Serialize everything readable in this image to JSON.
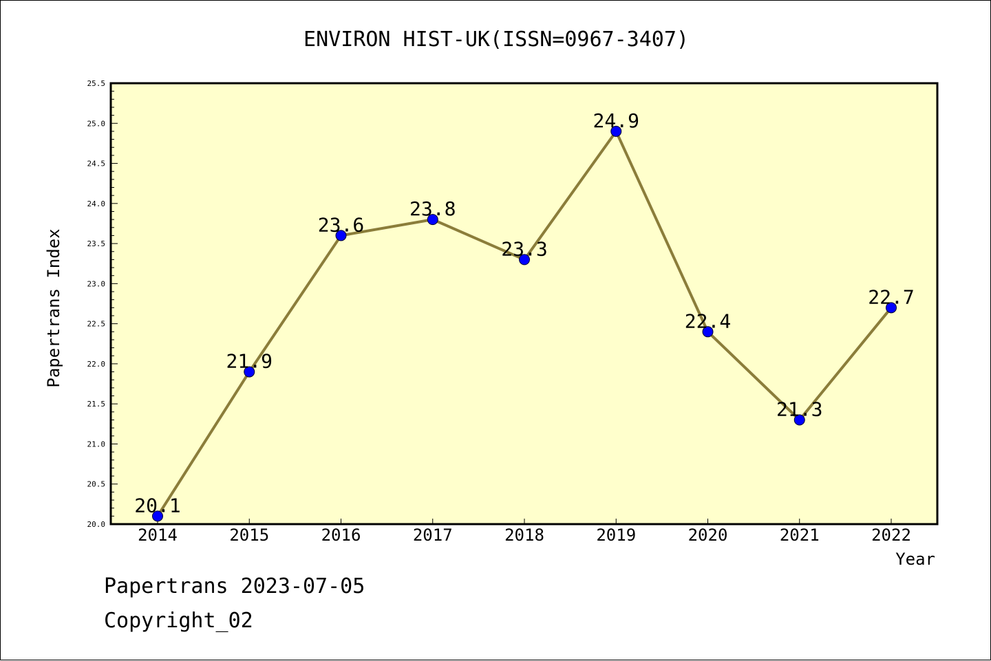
{
  "chart_data": {
    "type": "line",
    "title": "ENVIRON HIST-UK(ISSN=0967-3407)",
    "xlabel": "Year",
    "ylabel": "Papertrans Index",
    "categories": [
      "2014",
      "2015",
      "2016",
      "2017",
      "2018",
      "2019",
      "2020",
      "2021",
      "2022"
    ],
    "values": [
      20.1,
      21.9,
      23.6,
      23.8,
      23.3,
      24.9,
      22.4,
      21.3,
      22.7
    ],
    "data_labels": [
      "20.1",
      "21.9",
      "23.6",
      "23.8",
      "23.3",
      "24.9",
      "22.4",
      "21.3",
      "22.7"
    ],
    "ylim": [
      20.0,
      25.5
    ],
    "yticks": [
      "20.0",
      "20.5",
      "21.0",
      "21.5",
      "22.0",
      "22.5",
      "23.0",
      "23.5",
      "24.0",
      "24.5",
      "25.0",
      "25.5"
    ],
    "grid": false,
    "legend": "none",
    "colors": {
      "plot_background": "#ffffcc",
      "line": "#8b7d3a",
      "marker": "#0000ff"
    }
  },
  "footer": {
    "source": "Papertrans 2023-07-05",
    "copyright": "Copyright_02"
  }
}
